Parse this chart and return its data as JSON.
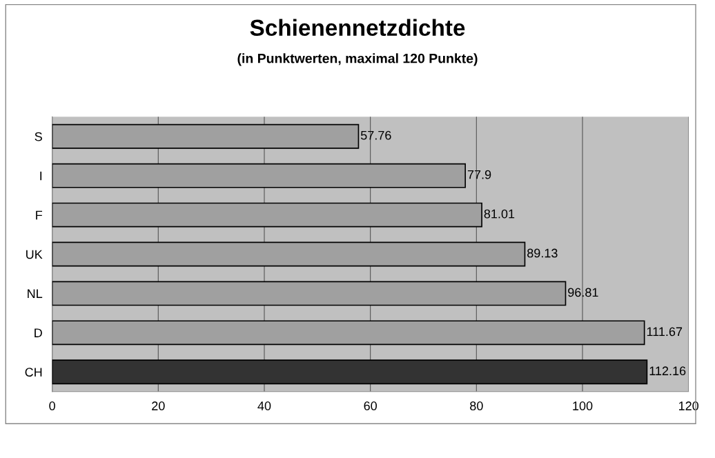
{
  "chart_data": {
    "type": "bar",
    "orientation": "horizontal",
    "title": "Schienennetzdichte",
    "subtitle": "(in Punktwerten, maximal 120 Punkte)",
    "categories": [
      "S",
      "I",
      "F",
      "UK",
      "NL",
      "D",
      "CH"
    ],
    "values": [
      57.76,
      77.9,
      81.01,
      89.13,
      96.81,
      111.67,
      112.16
    ],
    "colors": [
      "#a0a0a0",
      "#a0a0a0",
      "#a0a0a0",
      "#a0a0a0",
      "#a0a0a0",
      "#a0a0a0",
      "#333333"
    ],
    "xlim": [
      0,
      120
    ],
    "xticks": [
      0,
      20,
      40,
      60,
      80,
      100,
      120
    ],
    "grid": "x",
    "data_labels": true
  }
}
